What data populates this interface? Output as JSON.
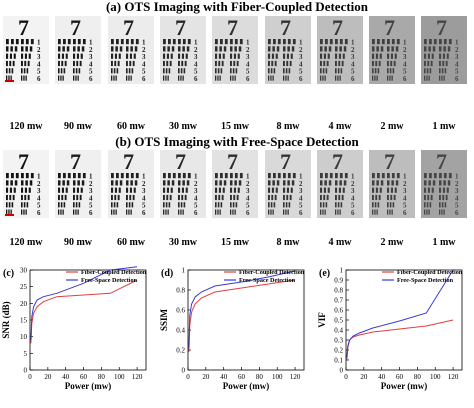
{
  "section_a": {
    "title": "(a)  OTS Imaging with Fiber-Coupled Detection",
    "power_labels": [
      "120 mw",
      "90 mw",
      "60 mw",
      "30 mw",
      "15 mw",
      "8 mw",
      "4 mw",
      "2 mw",
      "1 mw"
    ],
    "tile_backgrounds": [
      "#f3f3f3",
      "#efefef",
      "#ececec",
      "#e4e4e4",
      "#dcdcdc",
      "#cfcfcf",
      "#bdbdbd",
      "#a9a9a9",
      "#9c9c9c"
    ]
  },
  "section_b": {
    "title": "(b)  OTS Imaging with Free-Space Detection",
    "power_labels": [
      "120 mw",
      "90 mw",
      "60 mw",
      "30 mw",
      "15 mw",
      "8 mw",
      "4 mw",
      "2 mw",
      "1 mw"
    ],
    "tile_backgrounds": [
      "#f3f3f3",
      "#f0f0f0",
      "#ededed",
      "#e8e8e8",
      "#e2e2e2",
      "#d9d9d9",
      "#cdcdcd",
      "#bdbdbd",
      "#a3a3a3"
    ]
  },
  "target_digits": [
    "7",
    "1",
    "2",
    "3",
    "4",
    "5",
    "6"
  ],
  "colors": {
    "fiber": "#e04040",
    "free": "#3a3ad8",
    "marker": "#cc0000"
  },
  "chart_data": [
    {
      "type": "line",
      "panel": "(c)",
      "xlabel": "Power (mw)",
      "ylabel": "SNR (dB)",
      "xlim": [
        0,
        130
      ],
      "ylim": [
        0,
        30
      ],
      "xticks": [
        0,
        20,
        40,
        60,
        80,
        100,
        120
      ],
      "yticks": [
        0,
        5,
        10,
        15,
        20,
        25,
        30
      ],
      "legend_position": "top-right",
      "series": [
        {
          "name": "Fiber-Coupled Detection",
          "x": [
            1,
            2,
            4,
            8,
            15,
            30,
            60,
            90,
            120
          ],
          "y": [
            8,
            14,
            17,
            19,
            20.5,
            22,
            22.5,
            23,
            27
          ]
        },
        {
          "name": "Free-Space Detection",
          "x": [
            1,
            2,
            4,
            8,
            15,
            30,
            60,
            90,
            120
          ],
          "y": [
            9,
            16,
            19,
            21,
            22,
            23,
            26,
            30,
            31
          ]
        }
      ]
    },
    {
      "type": "line",
      "panel": "(d)",
      "xlabel": "Power (mw)",
      "ylabel": "SSIM",
      "xlim": [
        0,
        130
      ],
      "ylim": [
        0,
        1.0
      ],
      "xticks": [
        0,
        20,
        40,
        60,
        80,
        100,
        120
      ],
      "yticks": [
        0,
        0.2,
        0.4,
        0.6,
        0.8,
        1.0
      ],
      "legend_position": "top-right",
      "series": [
        {
          "name": "Fiber-Coupled Detection",
          "x": [
            1,
            2,
            4,
            8,
            15,
            30,
            60,
            90,
            120
          ],
          "y": [
            0.18,
            0.45,
            0.58,
            0.66,
            0.72,
            0.78,
            0.82,
            0.86,
            0.9
          ]
        },
        {
          "name": "Free-Space Detection",
          "x": [
            1,
            2,
            4,
            8,
            15,
            30,
            60,
            90,
            120
          ],
          "y": [
            0.22,
            0.55,
            0.66,
            0.73,
            0.78,
            0.84,
            0.88,
            0.93,
            0.99
          ]
        }
      ]
    },
    {
      "type": "line",
      "panel": "(e)",
      "xlabel": "Power (mw)",
      "ylabel": "VIF",
      "xlim": [
        0,
        130
      ],
      "ylim": [
        0,
        1.0
      ],
      "xticks": [
        0,
        20,
        40,
        60,
        80,
        100,
        120
      ],
      "yticks": [
        0,
        0.1,
        0.2,
        0.3,
        0.4,
        0.5,
        0.6,
        0.7,
        0.8,
        0.9,
        1.0
      ],
      "legend_position": "top-right",
      "series": [
        {
          "name": "Fiber-Coupled Detection",
          "x": [
            1,
            2,
            4,
            8,
            15,
            30,
            60,
            90,
            120
          ],
          "y": [
            0.1,
            0.22,
            0.3,
            0.33,
            0.35,
            0.38,
            0.41,
            0.44,
            0.5
          ]
        },
        {
          "name": "Free-Space Detection",
          "x": [
            1,
            2,
            4,
            8,
            15,
            30,
            60,
            90,
            120
          ],
          "y": [
            0.13,
            0.24,
            0.3,
            0.34,
            0.37,
            0.42,
            0.49,
            0.57,
            1.0
          ]
        }
      ]
    }
  ]
}
